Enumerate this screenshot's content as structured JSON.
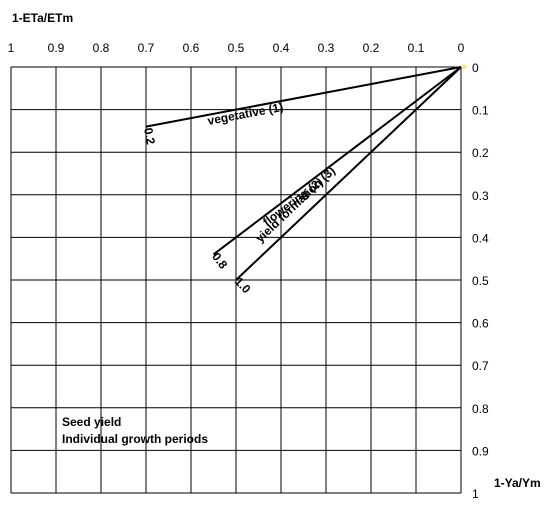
{
  "chart_data": {
    "type": "line",
    "title": "",
    "xlabel": "1-ETa/ETm",
    "ylabel": "1-Ya/Ym",
    "xlim": [
      1,
      0
    ],
    "ylim": [
      0,
      1
    ],
    "x_ticks": [
      "1",
      "0.9",
      "0.8",
      "0.7",
      "0.6",
      "0.5",
      "0.4",
      "0.3",
      "0.2",
      "0.1",
      "0"
    ],
    "y_ticks": [
      "0",
      "0.1",
      "0.2",
      "0.3",
      "0.4",
      "0.5",
      "0.6",
      "0.7",
      "0.8",
      "0.9",
      "1"
    ],
    "grid": true,
    "series": [
      {
        "name": "vegetative (1)",
        "end_label": "0.2",
        "x": [
          0,
          0.7
        ],
        "y": [
          0,
          0.14
        ]
      },
      {
        "name": "flowering (2)",
        "end_label": "0.8",
        "x": [
          0,
          0.55
        ],
        "y": [
          0,
          0.44
        ]
      },
      {
        "name": "yield formation (3)",
        "end_label": "1.0",
        "x": [
          0,
          0.5
        ],
        "y": [
          0,
          0.5
        ]
      }
    ],
    "annotations": [
      "Seed yield",
      "Individual growth periods"
    ]
  }
}
